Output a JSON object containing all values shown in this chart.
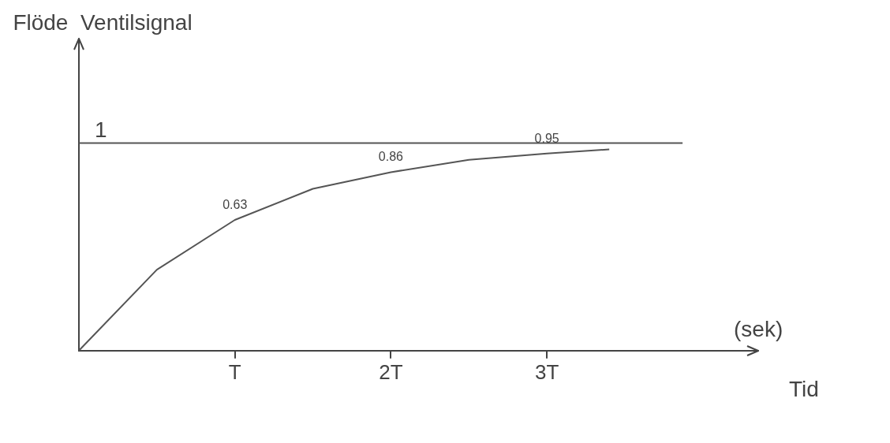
{
  "chart_data": {
    "type": "line",
    "ylabel": "Flöde  Ventilsignal",
    "xlabel": "Tid",
    "annotations": [
      "(sek)",
      {
        "text": "1",
        "x": 0,
        "y": 1
      }
    ],
    "xlim": [
      0,
      4.35
    ],
    "xticks": [
      {
        "value": 1,
        "label": "T"
      },
      {
        "value": 2,
        "label": "2T"
      },
      {
        "value": 3,
        "label": "3T"
      }
    ],
    "grid": false,
    "legend": false,
    "marker": "none",
    "line_style": "solid",
    "series": [
      {
        "color": "#555555",
        "x": [
          0,
          0.5,
          1,
          1.5,
          2,
          2.5,
          3,
          3.4
        ],
        "values": [
          0,
          0.39,
          0.63,
          0.78,
          0.86,
          0.92,
          0.95,
          0.97
        ],
        "value_labels": [
          null,
          null,
          "0.63",
          null,
          "0.86",
          null,
          "0.95",
          null
        ]
      },
      {
        "color": "#555555",
        "x": [
          0,
          3.87
        ],
        "values": [
          1,
          1
        ]
      }
    ]
  }
}
